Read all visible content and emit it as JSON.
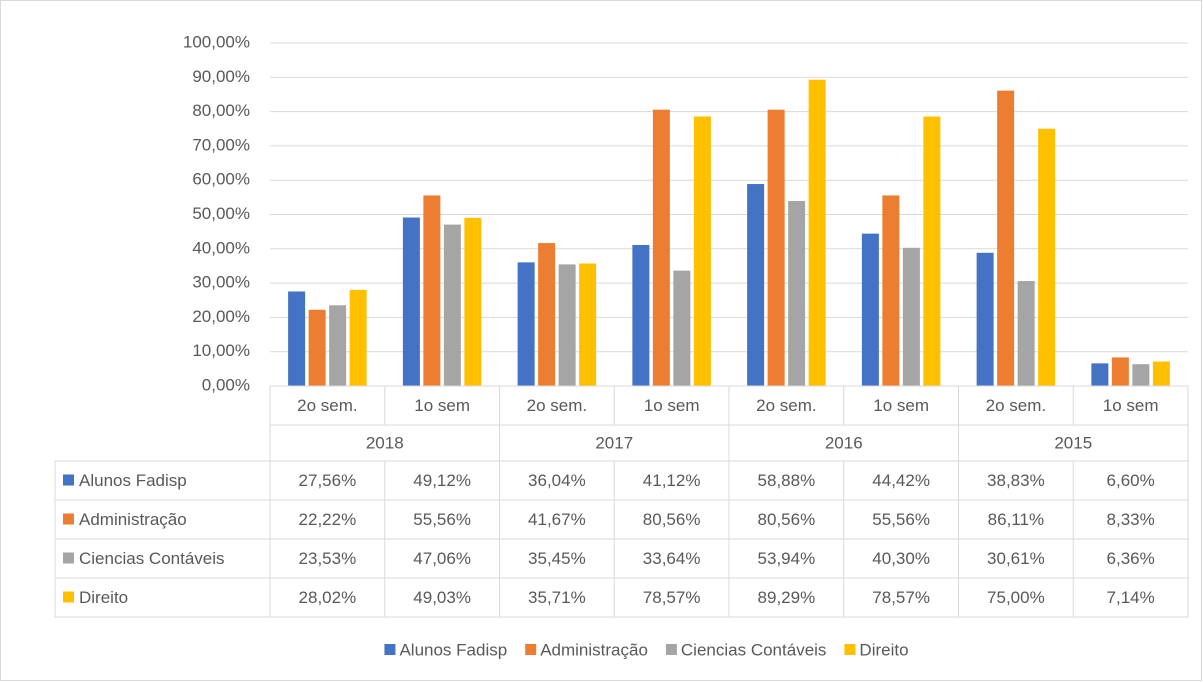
{
  "chart_data": {
    "type": "bar",
    "categories": [
      "2o sem.",
      "1o sem",
      "2o sem.",
      "1o sem",
      "2o sem.",
      "1o sem",
      "2o sem.",
      "1o sem"
    ],
    "category_groups": [
      "2018",
      "2017",
      "2016",
      "2015"
    ],
    "series": [
      {
        "name": "Alunos Fadisp",
        "color": "#4472c4",
        "values": [
          27.56,
          49.12,
          36.04,
          41.12,
          58.88,
          44.42,
          38.83,
          6.6
        ],
        "value_labels": [
          "27,56%",
          "49,12%",
          "36,04%",
          "41,12%",
          "58,88%",
          "44,42%",
          "38,83%",
          "6,60%"
        ]
      },
      {
        "name": "Administração",
        "color": "#ed7d31",
        "values": [
          22.22,
          55.56,
          41.67,
          80.56,
          80.56,
          55.56,
          86.11,
          8.33
        ],
        "value_labels": [
          "22,22%",
          "55,56%",
          "41,67%",
          "80,56%",
          "80,56%",
          "55,56%",
          "86,11%",
          "8,33%"
        ]
      },
      {
        "name": "Ciencias Contáveis",
        "color": "#a5a5a5",
        "values": [
          23.53,
          47.06,
          35.45,
          33.64,
          53.94,
          40.3,
          30.61,
          6.36
        ],
        "value_labels": [
          "23,53%",
          "47,06%",
          "35,45%",
          "33,64%",
          "53,94%",
          "40,30%",
          "30,61%",
          "6,36%"
        ]
      },
      {
        "name": "Direito",
        "color": "#ffc000",
        "values": [
          28.02,
          49.03,
          35.71,
          78.57,
          89.29,
          78.57,
          75.0,
          7.14
        ],
        "value_labels": [
          "28,02%",
          "49,03%",
          "35,71%",
          "78,57%",
          "89,29%",
          "78,57%",
          "75,00%",
          "7,14%"
        ]
      }
    ],
    "ylim": [
      0,
      100
    ],
    "yticks": [
      {
        "value": 0,
        "label": "0,00%"
      },
      {
        "value": 10,
        "label": "10,00%"
      },
      {
        "value": 20,
        "label": "20,00%"
      },
      {
        "value": 30,
        "label": "30,00%"
      },
      {
        "value": 40,
        "label": "40,00%"
      },
      {
        "value": 50,
        "label": "50,00%"
      },
      {
        "value": 60,
        "label": "60,00%"
      },
      {
        "value": 70,
        "label": "70,00%"
      },
      {
        "value": 80,
        "label": "80,00%"
      },
      {
        "value": 90,
        "label": "90,00%"
      },
      {
        "value": 100,
        "label": "100,00%"
      }
    ],
    "grid": true,
    "legend": "bottom"
  }
}
